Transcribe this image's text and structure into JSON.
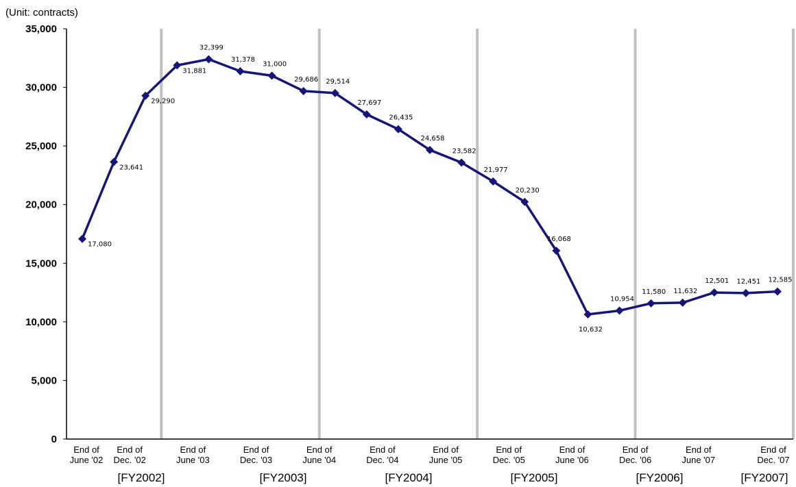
{
  "chart_data": {
    "type": "line",
    "unit_label": "(Unit: contracts)",
    "ylim": [
      0,
      35000
    ],
    "y_ticks": [
      "0",
      "5,000",
      "10,000",
      "15,000",
      "20,000",
      "25,000",
      "30,000",
      "35,000"
    ],
    "x_tick_labels": [
      {
        "line1": "End of",
        "line2": "June '02"
      },
      {
        "line1": "End of",
        "line2": "Dec. '02"
      },
      {
        "line1": "End of",
        "line2": "June '03"
      },
      {
        "line1": "End of",
        "line2": "Dec. '03"
      },
      {
        "line1": "End of",
        "line2": "June '04"
      },
      {
        "line1": "End of",
        "line2": "Dec. '04"
      },
      {
        "line1": "End of",
        "line2": "June '05"
      },
      {
        "line1": "End of",
        "line2": "Dec. '05"
      },
      {
        "line1": "End of",
        "line2": "June '06"
      },
      {
        "line1": "End of",
        "line2": "Dec. '06"
      },
      {
        "line1": "End of",
        "line2": "June '07"
      },
      {
        "line1": "End of",
        "line2": "Dec. '07"
      }
    ],
    "fiscal_years": [
      "[FY2002]",
      "[FY2003]",
      "[FY2004]",
      "[FY2005]",
      "[FY2006]",
      "[FY2007]"
    ],
    "series": [
      {
        "values": [
          17080,
          23641,
          29290,
          31881,
          32399,
          31378,
          31000,
          29686,
          29514,
          27697,
          26435,
          24658,
          23582,
          21977,
          20230,
          16068,
          10632,
          10954,
          11580,
          11632,
          12501,
          12451,
          12585
        ],
        "labels": [
          "17,080",
          "23,641",
          "29,290",
          "31,881",
          "32,399",
          "31,378",
          "31,000",
          "29,686",
          "29,514",
          "27,697",
          "26,435",
          "24,658",
          "23,582",
          "21,977",
          "20,230",
          "16,068",
          "10,632",
          "10,954",
          "11,580",
          "11,632",
          "12,501",
          "12,451",
          "12,585"
        ]
      }
    ],
    "line_color": "#16167a",
    "divider_color": "#c0c0c0",
    "grid": false
  }
}
